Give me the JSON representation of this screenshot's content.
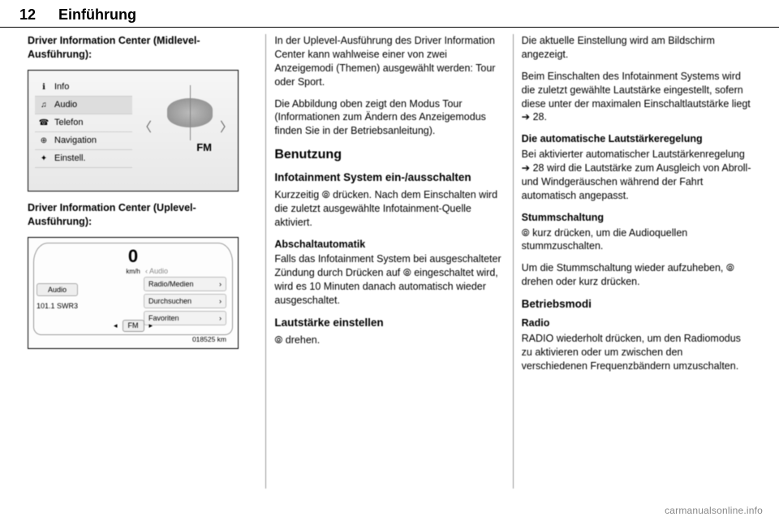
{
  "page_number": "12",
  "chapter_title": "Einführung",
  "footer": "carmanualsonline.info",
  "col1": {
    "p1": "Driver Information Center (Midlevel-Ausführung):",
    "p2": "Driver Information Center (Uplevel-Ausführung):",
    "fig1": {
      "menu": [
        {
          "icon": "info-icon",
          "glyph": "ℹ",
          "label": "Info",
          "selected": false
        },
        {
          "icon": "audio-icon",
          "glyph": "♫",
          "label": "Audio",
          "selected": true
        },
        {
          "icon": "phone-icon",
          "glyph": "☎",
          "label": "Telefon",
          "selected": false
        },
        {
          "icon": "nav-icon",
          "glyph": "⊕",
          "label": "Navigation",
          "selected": false
        },
        {
          "icon": "settings-icon",
          "glyph": "✦",
          "label": "Einstell.",
          "selected": false
        }
      ],
      "chev_left": "〈",
      "chev_right": "〉",
      "band": "FM"
    },
    "fig2": {
      "speed_value": "0",
      "speed_unit": "km/h",
      "left_tab": "Audio",
      "station": "101.1 SWR3",
      "menu_header": "‹ Audio",
      "menu_items": [
        "Radio/Medien",
        "Durchsuchen",
        "Favoriten"
      ],
      "chevron": "›",
      "band": "FM",
      "tri_left": "◂",
      "tri_right": "▸",
      "odometer": "018525 km"
    }
  },
  "col2": {
    "p1": "In der Uplevel-Ausführung des Driver Information Center kann wahlweise einer von zwei Anzeigemodi (Themen) ausgewählt werden: Tour oder Sport.",
    "p2": "Die Abbildung oben zeigt den Modus Tour (Informationen zum Ändern des Anzeigemodus finden Sie in der Betriebsanleitung).",
    "h2": "Benutzung",
    "h3a": "Infotainment System ein-/ausschalten",
    "p3": "Kurzzeitig ⦾ drücken. Nach dem Einschalten wird die zuletzt ausgewählte Infotainment-Quelle aktiviert.",
    "h4a": "Abschaltautomatik",
    "p4": "Falls das Infotainment System bei ausgeschalteter Zündung durch Drücken auf ⦾ eingeschaltet wird, wird es 10 Minuten danach automatisch wieder ausgeschaltet.",
    "h3b": "Lautstärke einstellen",
    "p5": "⦾ drehen."
  },
  "col3": {
    "p1": "Die aktuelle Einstellung wird am Bildschirm angezeigt.",
    "p2": "Beim Einschalten des Infotainment Systems wird die zuletzt gewählte Lautstärke eingestellt, sofern diese unter der maximalen Einschaltlautstärke liegt ➔ 28.",
    "h4a": "Die automatische Lautstärkeregelung",
    "p3": "Bei aktivierter automatischer Lautstärkenregelung ➔ 28 wird die Lautstärke zum Ausgleich von Abroll- und Windgeräuschen während der Fahrt automatisch angepasst.",
    "h4b": "Stummschaltung",
    "p4": "⦾ kurz drücken, um die Audioquellen stummzuschalten.",
    "p5": "Um die Stummschaltung wieder aufzuheben, ⦾ drehen oder kurz drücken.",
    "h3a": "Betriebsmodi",
    "h4c": "Radio",
    "p6": "RADIO wiederholt drücken, um den Radiomodus zu aktivieren oder um zwischen den verschiedenen Frequenzbändern umzuschalten."
  }
}
